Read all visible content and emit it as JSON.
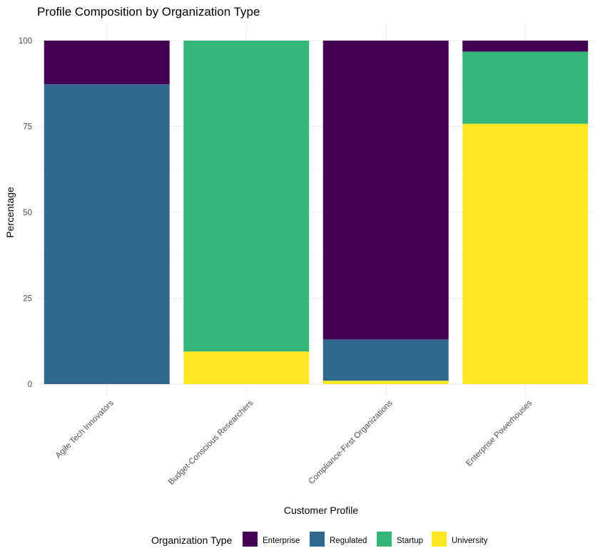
{
  "chart_data": {
    "type": "bar",
    "stacked": true,
    "title": "Profile Composition by Organization Type",
    "xlabel": "Customer Profile",
    "ylabel": "Percentage",
    "ylim": [
      0,
      100
    ],
    "yticks": [
      0,
      25,
      50,
      75,
      100
    ],
    "grid": true,
    "legend_position": "bottom",
    "legend_title": "Organization Type",
    "categories": [
      "Agile Tech Innovators",
      "Budget-Conscious Researchers",
      "Compliance-First Organizations",
      "Enterprise Powerhouses"
    ],
    "series": [
      {
        "name": "University",
        "color": "#FDE725",
        "values": [
          0,
          9.5,
          1.0,
          75.8
        ]
      },
      {
        "name": "Startup",
        "color": "#35B779",
        "values": [
          0,
          90.5,
          0,
          21.0
        ]
      },
      {
        "name": "Regulated",
        "color": "#31688E",
        "values": [
          87.3,
          0,
          12.0,
          0
        ]
      },
      {
        "name": "Enterprise",
        "color": "#440154",
        "values": [
          12.7,
          0,
          87.0,
          3.2
        ]
      }
    ],
    "legend_order": [
      "Enterprise",
      "Regulated",
      "Startup",
      "University"
    ]
  }
}
